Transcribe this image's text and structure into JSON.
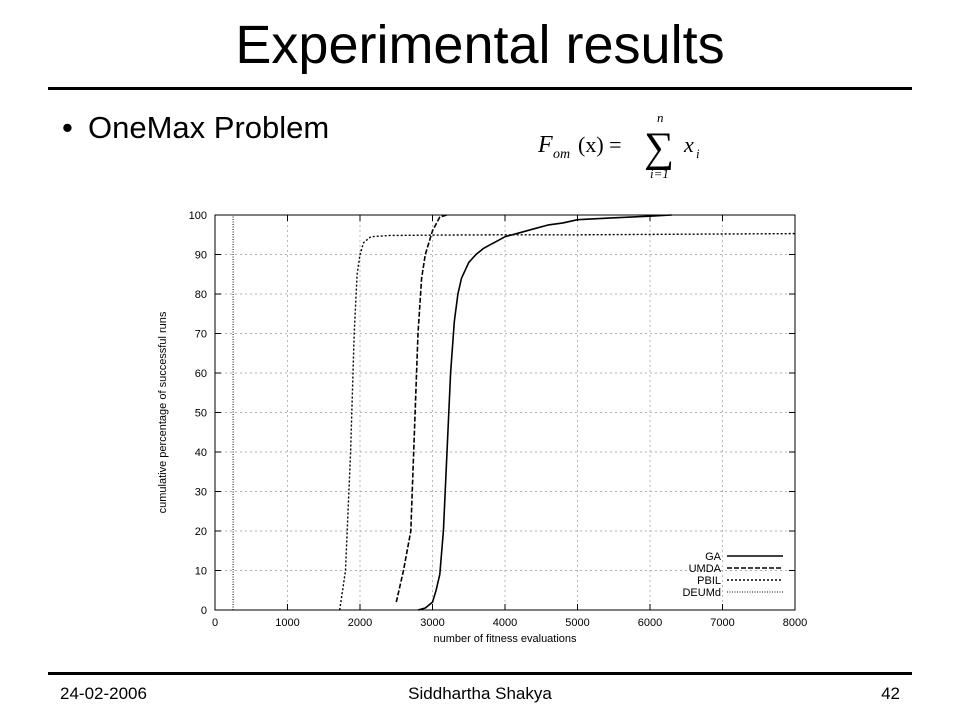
{
  "slide": {
    "title": "Experimental results",
    "bullet": "OneMax Problem",
    "formula": {
      "lhs_F": "F",
      "lhs_sub": "om",
      "lhs_arg": "(x) =",
      "sum_top": "n",
      "sum_bottom": "i=1",
      "term_x": "x",
      "term_sub": "i"
    }
  },
  "footer": {
    "date": "24-02-2006",
    "author": "Siddhartha Shakya",
    "page": "42"
  },
  "chart_data": {
    "type": "line",
    "xlabel": "number of fitness evaluations",
    "ylabel": "cumulative percentage of successful runs",
    "xlim": [
      0,
      8000
    ],
    "ylim": [
      0,
      100
    ],
    "xticks": [
      0,
      1000,
      2000,
      3000,
      4000,
      5000,
      6000,
      7000,
      8000
    ],
    "yticks": [
      0,
      10,
      20,
      30,
      40,
      50,
      60,
      70,
      80,
      90,
      100
    ],
    "grid": true,
    "legend_position": "bottom-right",
    "series": [
      {
        "name": "GA",
        "style": "solid",
        "x": [
          2800,
          2900,
          3000,
          3050,
          3100,
          3150,
          3200,
          3250,
          3300,
          3350,
          3400,
          3500,
          3600,
          3700,
          3800,
          3900,
          4000,
          4200,
          4400,
          4600,
          4800,
          5000,
          5500,
          6000,
          6300
        ],
        "y": [
          0,
          0.5,
          2,
          5,
          9,
          20,
          40,
          60,
          73,
          80,
          84,
          88,
          90,
          91.5,
          92.5,
          93.5,
          94.5,
          95.5,
          96.5,
          97.5,
          98,
          98.8,
          99.3,
          99.7,
          100
        ]
      },
      {
        "name": "UMDA",
        "style": "dashed",
        "x": [
          2500,
          2600,
          2700,
          2750,
          2800,
          2850,
          2900,
          3000,
          3100,
          3200
        ],
        "y": [
          2,
          10,
          20,
          45,
          70,
          84,
          90,
          96,
          99.5,
          100
        ]
      },
      {
        "name": "PBIL",
        "style": "dotted",
        "x": [
          1720,
          1800,
          1870,
          1920,
          1960,
          2000,
          2050,
          2150,
          2400,
          3000,
          4000,
          5000,
          6000,
          7000,
          8000
        ],
        "y": [
          0,
          10,
          40,
          70,
          85,
          90,
          93,
          94.5,
          94.8,
          94.9,
          95,
          95,
          95.1,
          95.2,
          95.3
        ]
      },
      {
        "name": "DEUMd",
        "style": "fine-dotted",
        "x": [
          250,
          250
        ],
        "y": [
          0,
          100
        ]
      }
    ]
  }
}
